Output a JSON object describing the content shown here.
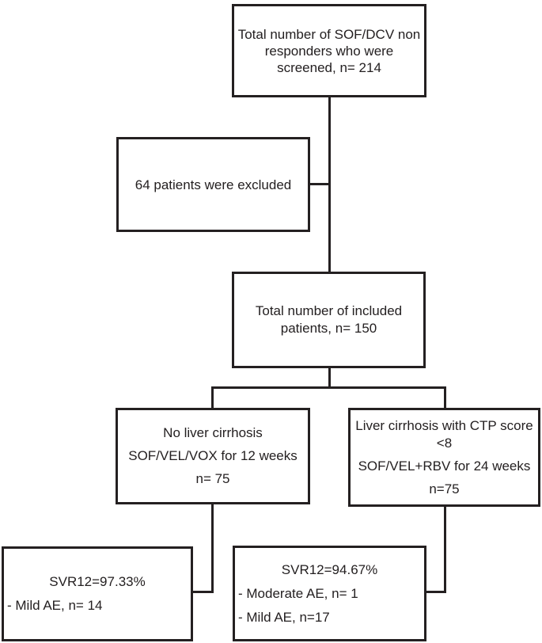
{
  "diagram": {
    "type": "patient-flowchart",
    "colors": {
      "border": "#242021",
      "text": "#242021",
      "background": "#ffffff"
    },
    "boxes": {
      "screened": {
        "text": "Total number of SOF/DCV non responders who were screened, n= 214"
      },
      "excluded": {
        "text": "64 patients were excluded"
      },
      "included": {
        "text": "Total number of included patients, n= 150"
      },
      "arm_no_cirrhosis": {
        "lines": [
          "No liver cirrhosis",
          "SOF/VEL/VOX for 12 weeks",
          "n= 75"
        ]
      },
      "arm_cirrhosis": {
        "lines": [
          "Liver cirrhosis with CTP score <8",
          "SOF/VEL+RBV for 24 weeks",
          "n=75"
        ]
      },
      "outcome_no_cirrhosis": {
        "svr": "SVR12=97.33%",
        "ae_lines": [
          "- Mild AE, n= 14"
        ]
      },
      "outcome_cirrhosis": {
        "svr": "SVR12=94.67%",
        "ae_lines": [
          "- Moderate AE, n= 1",
          "- Mild AE, n=17"
        ]
      }
    }
  }
}
